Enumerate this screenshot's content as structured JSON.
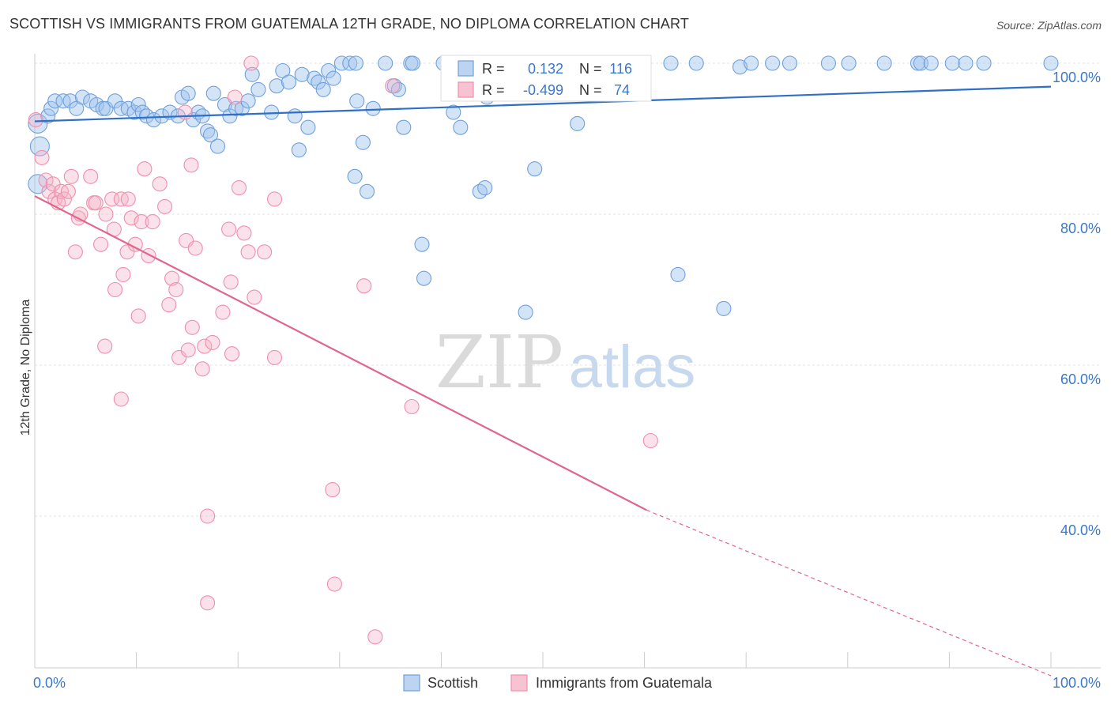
{
  "title": "SCOTTISH VS IMMIGRANTS FROM GUATEMALA 12TH GRADE, NO DIPLOMA CORRELATION CHART",
  "source": "Source: ZipAtlas.com",
  "watermark": {
    "zip": "ZIP",
    "atlas": "atlas"
  },
  "colors": {
    "scottish": "#6fa0dc",
    "scottish_line": "#2f6fc7",
    "guatemala": "#ee8fac",
    "guatemala_line": "#e0668d",
    "axis_text": "#3c78c8"
  },
  "legend_box": {
    "rows": [
      {
        "r_label": "R =",
        "r_value": "0.132",
        "n_label": "N =",
        "n_value": "116"
      },
      {
        "r_label": "R =",
        "r_value": "-0.499",
        "n_label": "N =",
        "n_value": "74"
      }
    ]
  },
  "bottom_legend": [
    "Scottish",
    "Immigrants from Guatemala"
  ],
  "chart_data": {
    "type": "scatter",
    "title": "SCOTTISH VS IMMIGRANTS FROM GUATEMALA 12TH GRADE, NO DIPLOMA CORRELATION CHART",
    "xlabel": "",
    "ylabel": "12th Grade, No Diploma",
    "xlim": [
      0,
      100
    ],
    "ylim": [
      20,
      102
    ],
    "x_tick_labels": [
      "0.0%",
      "100.0%"
    ],
    "y_ticks": [
      40,
      60,
      80,
      100
    ],
    "y_tick_labels": [
      "40.0%",
      "60.0%",
      "80.0%",
      "100.0%"
    ],
    "grid": true,
    "legend": "bottom-center",
    "series": [
      {
        "name": "Scottish",
        "r": 0.132,
        "n": 116,
        "trend": {
          "x0": 0,
          "y0": 92.3,
          "x1": 100,
          "y1": 96.9
        },
        "points": [
          [
            0.3,
            92
          ],
          [
            0.5,
            89
          ],
          [
            0.3,
            84
          ],
          [
            1.3,
            93
          ],
          [
            1.6,
            94
          ],
          [
            2,
            95
          ],
          [
            2.8,
            95
          ],
          [
            3.5,
            95
          ],
          [
            4.1,
            94
          ],
          [
            4.7,
            95.5
          ],
          [
            5.5,
            95
          ],
          [
            6.1,
            94.5
          ],
          [
            6.7,
            94
          ],
          [
            7,
            94
          ],
          [
            7.9,
            95
          ],
          [
            8.5,
            94
          ],
          [
            9.2,
            94
          ],
          [
            9.8,
            93.5
          ],
          [
            10.2,
            94.5
          ],
          [
            10.6,
            93.5
          ],
          [
            11,
            93
          ],
          [
            11.7,
            92.5
          ],
          [
            12.5,
            93
          ],
          [
            13.3,
            93.5
          ],
          [
            14.1,
            93
          ],
          [
            14.5,
            95.5
          ],
          [
            15.1,
            96
          ],
          [
            15.6,
            92.5
          ],
          [
            16.1,
            93.5
          ],
          [
            16.5,
            93
          ],
          [
            17,
            91
          ],
          [
            17.3,
            90.5
          ],
          [
            18,
            89
          ],
          [
            17.6,
            96
          ],
          [
            18.7,
            94.5
          ],
          [
            19.2,
            93
          ],
          [
            19.8,
            94
          ],
          [
            20.4,
            94
          ],
          [
            21,
            95
          ],
          [
            21.4,
            98.5
          ],
          [
            22,
            96.5
          ],
          [
            23.3,
            93.5
          ],
          [
            23.8,
            97
          ],
          [
            24.4,
            99
          ],
          [
            25,
            97.5
          ],
          [
            25.6,
            93
          ],
          [
            26,
            88.5
          ],
          [
            26.3,
            98.5
          ],
          [
            26.9,
            91.5
          ],
          [
            27.5,
            98
          ],
          [
            27.9,
            97.5
          ],
          [
            28.4,
            96.5
          ],
          [
            28.9,
            99
          ],
          [
            29.4,
            98
          ],
          [
            30.2,
            100
          ],
          [
            31,
            100
          ],
          [
            31.6,
            100
          ],
          [
            31.7,
            95
          ],
          [
            32.3,
            89.5
          ],
          [
            32.7,
            83
          ],
          [
            31.5,
            85
          ],
          [
            33.3,
            94
          ],
          [
            34.5,
            100
          ],
          [
            35.4,
            97
          ],
          [
            35.8,
            96.5
          ],
          [
            36.3,
            91.5
          ],
          [
            37,
            100
          ],
          [
            37.2,
            100
          ],
          [
            38.1,
            76
          ],
          [
            38.3,
            71.5
          ],
          [
            40.2,
            100
          ],
          [
            40.8,
            100
          ],
          [
            41.2,
            93.5
          ],
          [
            41.9,
            91.5
          ],
          [
            42.2,
            100
          ],
          [
            43.3,
            100
          ],
          [
            43.8,
            83
          ],
          [
            44.3,
            83.5
          ],
          [
            44.5,
            95.5
          ],
          [
            47,
            100
          ],
          [
            48.3,
            67
          ],
          [
            49.2,
            86
          ],
          [
            49.6,
            100
          ],
          [
            50.4,
            100
          ],
          [
            51.3,
            100
          ],
          [
            52.6,
            100
          ],
          [
            53.4,
            92
          ],
          [
            54.2,
            100
          ],
          [
            55.7,
            96
          ],
          [
            56.3,
            100
          ],
          [
            56.8,
            100
          ],
          [
            58.3,
            100
          ],
          [
            58.5,
            100
          ],
          [
            62.6,
            100
          ],
          [
            63.3,
            72
          ],
          [
            65.1,
            100
          ],
          [
            67.8,
            67.5
          ],
          [
            69.4,
            99.5
          ],
          [
            70.5,
            100
          ],
          [
            72.6,
            100
          ],
          [
            74.3,
            100
          ],
          [
            78.1,
            100
          ],
          [
            80.1,
            100
          ],
          [
            83.6,
            100
          ],
          [
            86.9,
            100
          ],
          [
            87.2,
            100
          ],
          [
            88.2,
            100
          ],
          [
            90.3,
            100
          ],
          [
            91.6,
            100
          ],
          [
            93.4,
            100
          ],
          [
            100,
            100
          ]
        ]
      },
      {
        "name": "Immigrants from Guatemala",
        "r": -0.499,
        "n": 74,
        "trend": {
          "x0": 0,
          "y0": 82.4,
          "x1": 60.2,
          "y1": 40.8
        },
        "trend_dashed": {
          "x0": 60.2,
          "y0": 40.8,
          "x1": 100,
          "y1": 13.2
        },
        "points": [
          [
            0.1,
            92.5
          ],
          [
            0.7,
            87.5
          ],
          [
            1.1,
            84.5
          ],
          [
            1.4,
            83
          ],
          [
            1.8,
            84
          ],
          [
            2,
            82
          ],
          [
            2.3,
            81.5
          ],
          [
            2.6,
            83
          ],
          [
            2.9,
            82
          ],
          [
            3.3,
            83
          ],
          [
            3.6,
            85
          ],
          [
            4,
            75
          ],
          [
            4.3,
            79.5
          ],
          [
            4.5,
            80
          ],
          [
            5.5,
            85
          ],
          [
            5.8,
            81.5
          ],
          [
            6,
            81.5
          ],
          [
            6.5,
            76
          ],
          [
            6.9,
            62.5
          ],
          [
            7,
            80
          ],
          [
            7.6,
            82
          ],
          [
            7.8,
            78
          ],
          [
            7.9,
            70
          ],
          [
            8.5,
            82
          ],
          [
            8.5,
            55.5
          ],
          [
            8.7,
            72
          ],
          [
            9.1,
            75
          ],
          [
            9.2,
            82
          ],
          [
            9.5,
            79.5
          ],
          [
            9.9,
            76
          ],
          [
            10.2,
            66.5
          ],
          [
            10.5,
            79
          ],
          [
            10.8,
            86
          ],
          [
            11.2,
            74.5
          ],
          [
            11.6,
            79
          ],
          [
            12.3,
            84
          ],
          [
            12.8,
            81
          ],
          [
            13.2,
            68
          ],
          [
            13.5,
            71.5
          ],
          [
            13.9,
            70
          ],
          [
            14.2,
            61
          ],
          [
            14.8,
            93.5
          ],
          [
            14.9,
            76.5
          ],
          [
            15.1,
            62
          ],
          [
            15.4,
            86.5
          ],
          [
            15.5,
            65
          ],
          [
            15.8,
            75.5
          ],
          [
            16.5,
            59.5
          ],
          [
            16.7,
            62.5
          ],
          [
            17,
            40
          ],
          [
            17,
            28.5
          ],
          [
            17.5,
            63
          ],
          [
            18.5,
            67
          ],
          [
            19.1,
            78
          ],
          [
            19.3,
            71
          ],
          [
            19.4,
            61.5
          ],
          [
            19.7,
            95.5
          ],
          [
            20.1,
            83.5
          ],
          [
            20.6,
            77.5
          ],
          [
            21,
            75
          ],
          [
            21.3,
            100
          ],
          [
            21.6,
            69
          ],
          [
            22.6,
            75
          ],
          [
            23.6,
            61
          ],
          [
            23.6,
            82
          ],
          [
            29.3,
            43.5
          ],
          [
            29.5,
            31
          ],
          [
            32.4,
            70.5
          ],
          [
            33.5,
            24
          ],
          [
            35.2,
            97
          ],
          [
            37.1,
            54.5
          ],
          [
            60.6,
            50
          ]
        ]
      }
    ]
  }
}
